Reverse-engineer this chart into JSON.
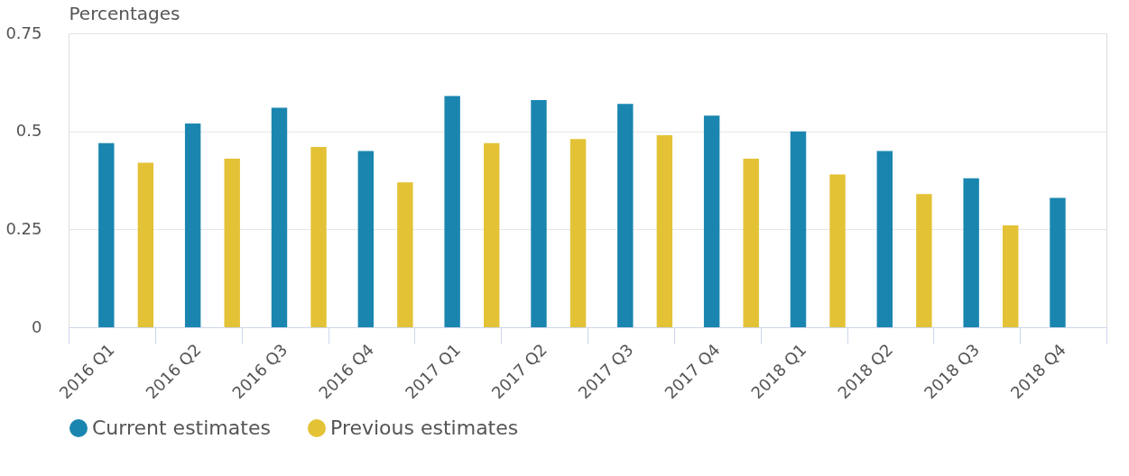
{
  "chart_data": {
    "type": "bar",
    "ylabel": "Percentages",
    "categories": [
      "2016 Q1",
      "2016 Q2",
      "2016 Q3",
      "2016 Q4",
      "2017 Q1",
      "2017 Q2",
      "2017 Q3",
      "2017 Q4",
      "2018 Q1",
      "2018 Q2",
      "2018 Q3",
      "2018 Q4"
    ],
    "series": [
      {
        "name": "Current estimates",
        "color": "#1a86b0",
        "values": [
          0.47,
          0.52,
          0.56,
          0.45,
          0.59,
          0.58,
          0.57,
          0.54,
          0.5,
          0.45,
          0.38,
          0.33
        ]
      },
      {
        "name": "Previous estimates",
        "color": "#e3c236",
        "values": [
          0.42,
          0.43,
          0.46,
          0.37,
          0.47,
          0.48,
          0.49,
          0.43,
          0.39,
          0.34,
          0.26,
          null
        ]
      }
    ],
    "ylim": [
      0,
      0.75
    ],
    "yticks": [
      0,
      0.25,
      0.5,
      0.75
    ],
    "grid": "y",
    "legend": "bottom"
  }
}
